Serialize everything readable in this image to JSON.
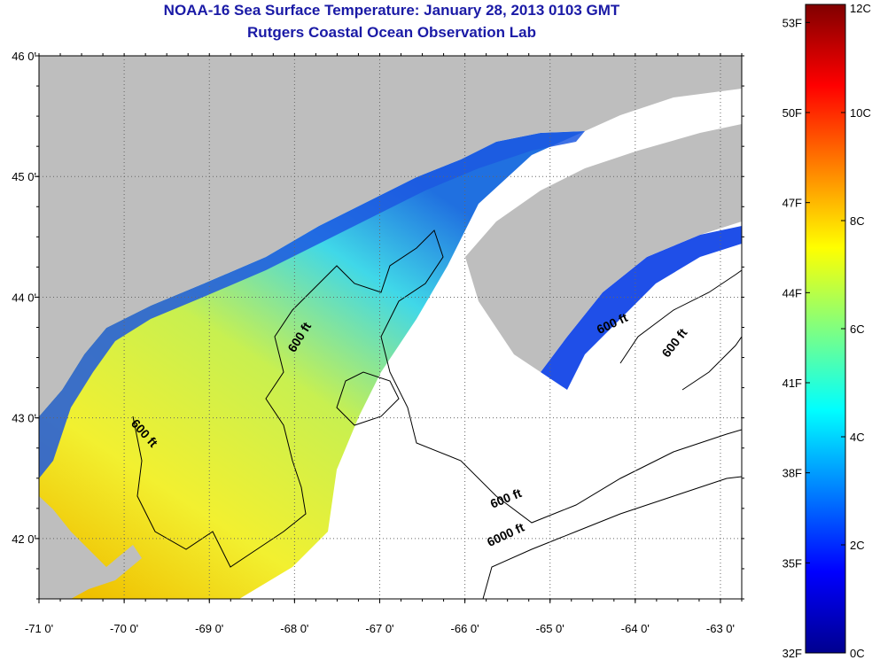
{
  "title_line1": "NOAA-16 Sea Surface Temperature:  January 28, 2013 0103 GMT",
  "title_line2": "Rutgers Coastal Ocean Observation Lab",
  "map": {
    "lon_range": [
      -71.0,
      -62.75
    ],
    "lat_range": [
      41.5,
      46.0
    ],
    "lon_ticks": [
      {
        "value": -71,
        "label": "-71 0'"
      },
      {
        "value": -70,
        "label": "-70 0'"
      },
      {
        "value": -69,
        "label": "-69 0'"
      },
      {
        "value": -68,
        "label": "-68 0'"
      },
      {
        "value": -67,
        "label": "-67 0'"
      },
      {
        "value": -66,
        "label": "-66 0'"
      },
      {
        "value": -65,
        "label": "-65 0'"
      },
      {
        "value": -64,
        "label": "-64 0'"
      },
      {
        "value": -63,
        "label": "-63 0'"
      }
    ],
    "lat_ticks": [
      {
        "value": 46,
        "label": "46 0'"
      },
      {
        "value": 45,
        "label": "45 0'"
      },
      {
        "value": 44,
        "label": "44 0'"
      },
      {
        "value": 43,
        "label": "43 0'"
      },
      {
        "value": 42,
        "label": "42 0'"
      }
    ],
    "grid": "dotted",
    "contour_labels": [
      {
        "text": "600 ft",
        "lon": -67.9,
        "lat": 43.65,
        "rotate": -58
      },
      {
        "text": "600 ft",
        "lon": -69.8,
        "lat": 42.85,
        "rotate": 48
      },
      {
        "text": "600 ft",
        "lon": -64.25,
        "lat": 43.75,
        "rotate": -25
      },
      {
        "text": "600 ft",
        "lon": -63.5,
        "lat": 43.6,
        "rotate": -52
      },
      {
        "text": "600 ft",
        "lon": -65.5,
        "lat": 42.3,
        "rotate": -22
      },
      {
        "text": "6000 ft",
        "lon": -65.5,
        "lat": 42.0,
        "rotate": -25
      }
    ],
    "land_color": "#bebebe",
    "nodata_color": "#ffffff"
  },
  "colorbar": {
    "f_labels": [
      {
        "value": 53,
        "label": "53F"
      },
      {
        "value": 50,
        "label": "50F"
      },
      {
        "value": 47,
        "label": "47F"
      },
      {
        "value": 44,
        "label": "44F"
      },
      {
        "value": 41,
        "label": "41F"
      },
      {
        "value": 38,
        "label": "38F"
      },
      {
        "value": 35,
        "label": "35F"
      },
      {
        "value": 32,
        "label": "32F"
      }
    ],
    "c_labels": [
      {
        "value": 12,
        "label": "12C"
      },
      {
        "value": 10,
        "label": "10C"
      },
      {
        "value": 8,
        "label": "8C"
      },
      {
        "value": 6,
        "label": "6C"
      },
      {
        "value": 4,
        "label": "4C"
      },
      {
        "value": 2,
        "label": "2C"
      },
      {
        "value": 0,
        "label": "0C"
      }
    ],
    "c_range": [
      0,
      12
    ],
    "colors": [
      "#00008f",
      "#0000ff",
      "#0080ff",
      "#00ffff",
      "#80ff80",
      "#ffff00",
      "#ff8000",
      "#ff0000",
      "#800000"
    ]
  }
}
